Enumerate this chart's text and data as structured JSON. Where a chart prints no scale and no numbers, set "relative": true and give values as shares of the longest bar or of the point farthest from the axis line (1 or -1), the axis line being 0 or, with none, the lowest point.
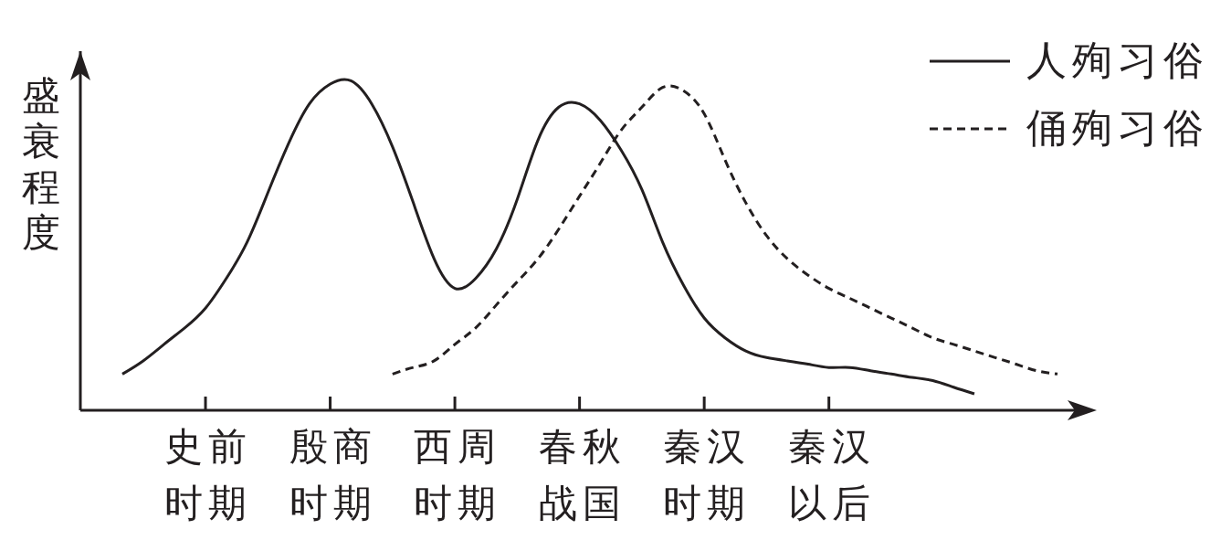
{
  "chart_data": {
    "type": "line",
    "ylabel": "盛衰程度",
    "relative": true,
    "legend": "top right",
    "marker": "none",
    "categories": [
      null,
      null,
      null,
      null,
      "史前时期",
      null,
      null,
      null,
      null,
      null,
      "殷商时期",
      null,
      null,
      null,
      null,
      null,
      "西周时期",
      null,
      null,
      null,
      null,
      null,
      "春秋战国",
      null,
      null,
      null,
      null,
      null,
      "秦汉时期",
      null,
      null,
      null,
      null,
      null,
      "秦汉以后",
      null,
      null,
      null,
      null,
      null,
      null,
      null,
      null,
      null,
      null,
      null
    ],
    "series": [
      {
        "name": "人殉习俗",
        "color": "#231f20",
        "line_style": "solid",
        "values": [
          0.11,
          0.15,
          0.2,
          0.25,
          0.31,
          0.4,
          0.51,
          0.66,
          0.81,
          0.93,
          0.99,
          1,
          0.93,
          0.8,
          0.63,
          0.46,
          0.37,
          0.4,
          0.49,
          0.64,
          0.82,
          0.92,
          0.93,
          0.88,
          0.79,
          0.67,
          0.51,
          0.38,
          0.28,
          0.22,
          0.18,
          0.16,
          0.15,
          0.14,
          0.13,
          0.13,
          0.12,
          0.11,
          0.1,
          0.09,
          0.07,
          0.05,
          null,
          null,
          null,
          null
        ]
      },
      {
        "name": "俑殉习俗",
        "color": "#231f20",
        "line_style": "dashed",
        "values": [
          null,
          null,
          null,
          null,
          null,
          null,
          null,
          null,
          null,
          null,
          null,
          null,
          null,
          0.11,
          0.13,
          0.15,
          0.2,
          0.25,
          0.32,
          0.39,
          0.46,
          0.55,
          0.65,
          0.75,
          0.85,
          0.92,
          0.98,
          0.97,
          0.9,
          0.76,
          0.63,
          0.53,
          0.46,
          0.41,
          0.37,
          0.34,
          0.31,
          0.28,
          0.25,
          0.22,
          0.2,
          0.18,
          0.16,
          0.14,
          0.12,
          0.11
        ]
      }
    ]
  }
}
